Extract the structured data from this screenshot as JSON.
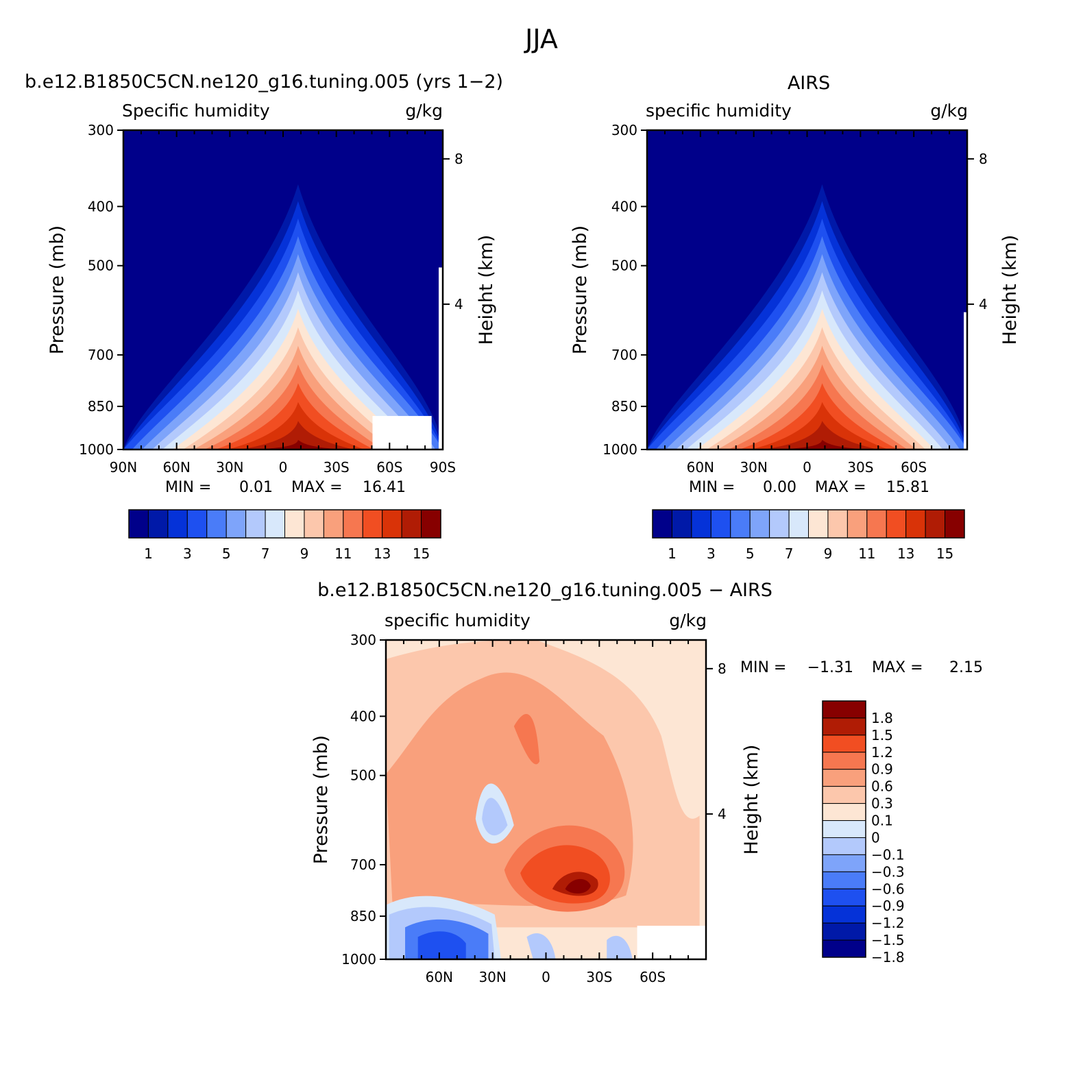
{
  "figure": {
    "title": "JJA"
  },
  "colors": {
    "abs_scale": [
      "#00008a",
      "#0019a8",
      "#0532d8",
      "#1e50f0",
      "#4a7cf8",
      "#7ea4fa",
      "#b3c9fc",
      "#d8e8fb",
      "#fde6d4",
      "#fcc7ac",
      "#f9a07c",
      "#f67750",
      "#f14e22",
      "#d93308",
      "#b01c05",
      "#870000"
    ],
    "diff_scale": [
      "#00008a",
      "#0019a8",
      "#0532d8",
      "#1e50f0",
      "#4a7cf8",
      "#7ea4fa",
      "#b3c9fc",
      "#d8e8fb",
      "#fde6d4",
      "#fcc7ac",
      "#f9a07c",
      "#f67750",
      "#f14e22",
      "#b01c05",
      "#870000"
    ]
  },
  "chart_data": [
    {
      "type": "contour",
      "title": "b.e12.B1850C5CN.ne120_g16.tuning.005 (yrs 1−2)",
      "left_label": "Specific humidity",
      "right_label": "g/kg",
      "ylabel": "Pressure (mb)",
      "y2label": "Height (km)",
      "yticks": [
        "300",
        "400",
        "500",
        "700",
        "850",
        "1000"
      ],
      "y2ticks": [
        "8",
        "4"
      ],
      "xticks": [
        "90N",
        "60N",
        "30N",
        "0",
        "30S",
        "60S",
        "90S"
      ],
      "xrange": [
        90,
        -90
      ],
      "ylim": [
        300,
        1000
      ],
      "min_label": "MIN =",
      "min_value": "0.01",
      "max_label": "MAX =",
      "max_value": "16.41",
      "levels": [
        "1",
        "3",
        "5",
        "7",
        "9",
        "11",
        "13",
        "15"
      ],
      "peak_latitude": -10
    },
    {
      "type": "contour",
      "title": "AIRS",
      "left_label": "specific humidity",
      "right_label": "g/kg",
      "ylabel": "Pressure (mb)",
      "y2label": "Height (km)",
      "yticks": [
        "300",
        "400",
        "500",
        "700",
        "850",
        "1000"
      ],
      "y2ticks": [
        "8",
        "4"
      ],
      "xticks": [
        "60N",
        "30N",
        "0",
        "30S",
        "60S"
      ],
      "xrange": [
        90,
        -90
      ],
      "ylim": [
        300,
        1000
      ],
      "min_label": "MIN =",
      "min_value": "0.00",
      "max_label": "MAX =",
      "max_value": "15.81",
      "levels": [
        "1",
        "3",
        "5",
        "7",
        "9",
        "11",
        "13",
        "15"
      ],
      "peak_latitude": -10
    },
    {
      "type": "contour",
      "title": "b.e12.B1850C5CN.ne120_g16.tuning.005 − AIRS",
      "left_label": "specific humidity",
      "right_label": "g/kg",
      "ylabel": "Pressure (mb)",
      "y2label": "Height (km)",
      "yticks": [
        "300",
        "400",
        "500",
        "700",
        "850",
        "1000"
      ],
      "y2ticks": [
        "8",
        "4"
      ],
      "xticks": [
        "60N",
        "30N",
        "0",
        "30S",
        "60S"
      ],
      "xrange": [
        90,
        -90
      ],
      "ylim": [
        300,
        1000
      ],
      "min_label": "MIN =",
      "min_value": "−1.31",
      "max_label": "MAX =",
      "max_value": "2.15",
      "levels": [
        "1.8",
        "1.5",
        "1.2",
        "0.9",
        "0.6",
        "0.3",
        "0.1",
        "0",
        "−0.1",
        "−0.3",
        "−0.6",
        "−0.9",
        "−1.2",
        "−1.5",
        "−1.8"
      ]
    }
  ]
}
